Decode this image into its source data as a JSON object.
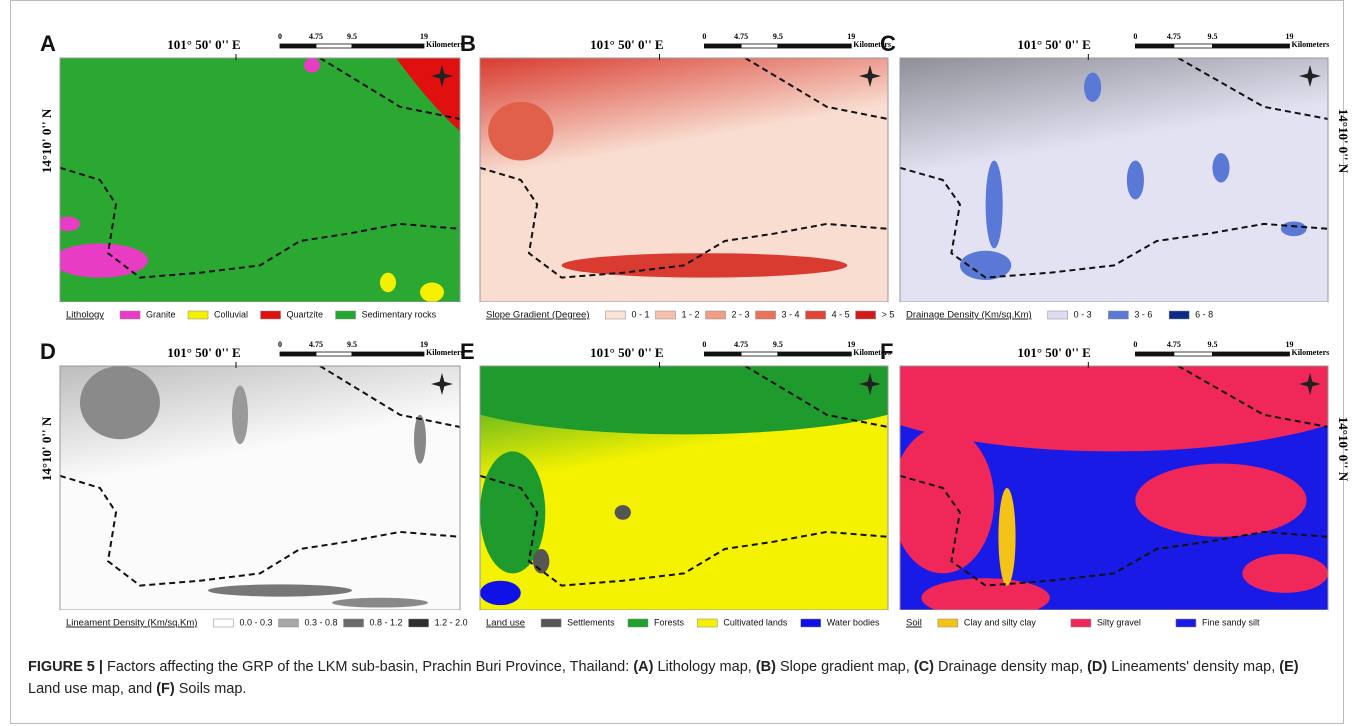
{
  "panels": [
    {
      "label": "A",
      "coordinate_top": "101° 50' 0'' E",
      "coordinate_side": "14°10' 0'' N",
      "side": "left",
      "scale_ticks": [
        0,
        4.75,
        9.5,
        19
      ],
      "scale_unit": "Kilometers",
      "legend_title": "Lithology",
      "legend": [
        {
          "name": "Granite",
          "color": "#e83cc4"
        },
        {
          "name": "Colluvial",
          "color": "#f5f000"
        },
        {
          "name": "Quartzite",
          "color": "#e01010"
        },
        {
          "name": "Sedimentary rocks",
          "color": "#22a832"
        }
      ]
    },
    {
      "label": "B",
      "coordinate_top": "101° 50' 0'' E",
      "scale_ticks": [
        0,
        4.75,
        9.5,
        19
      ],
      "scale_unit": "Kilometers",
      "legend_title": "Slope Gradient (Degree)",
      "legend": [
        {
          "name": "0 - 1",
          "color": "#fbe3d6"
        },
        {
          "name": "1 - 2",
          "color": "#f7c2ad"
        },
        {
          "name": "2 - 3",
          "color": "#f19c84"
        },
        {
          "name": "3 - 4",
          "color": "#ea735a"
        },
        {
          "name": "4 - 5",
          "color": "#e04535"
        },
        {
          "name": "> 5",
          "color": "#d21a1a"
        }
      ]
    },
    {
      "label": "C",
      "coordinate_top": "101° 50' 0'' E",
      "coordinate_side": "14°10' 0'' N",
      "side": "right",
      "scale_ticks": [
        0,
        4.75,
        9.5,
        19
      ],
      "scale_unit": "Kilometers",
      "legend_title": "Drainage Density (Km/sq.Km)",
      "legend": [
        {
          "name": "0 - 3",
          "color": "#dcdcf2"
        },
        {
          "name": "3 - 6",
          "color": "#5a78d6"
        },
        {
          "name": "6 - 8",
          "color": "#0c2a8c"
        }
      ]
    },
    {
      "label": "D",
      "coordinate_top": "101° 50' 0'' E",
      "coordinate_side": "14°10' 0'' N",
      "side": "left",
      "scale_ticks": [
        0,
        4.75,
        9.5,
        19
      ],
      "scale_unit": "Kilometers",
      "legend_title": "Lineament Density (Km/sq.Km)",
      "legend": [
        {
          "name": "0.0 - 0.3",
          "color": "#ffffff"
        },
        {
          "name": "0.3 - 0.8",
          "color": "#a8a8a8"
        },
        {
          "name": "0.8 - 1.2",
          "color": "#6a6a6a"
        },
        {
          "name": "1.2 - 2.0",
          "color": "#2e2e2e"
        }
      ]
    },
    {
      "label": "E",
      "coordinate_top": "101° 50' 0'' E",
      "scale_ticks": [
        0,
        4.75,
        9.5,
        19
      ],
      "scale_unit": "Kilometers",
      "legend_title": "Land use",
      "legend": [
        {
          "name": "Settlements",
          "color": "#555555"
        },
        {
          "name": "Forests",
          "color": "#1fa12c"
        },
        {
          "name": "Cultivated lands",
          "color": "#f5f200"
        },
        {
          "name": "Water bodies",
          "color": "#1010e8"
        }
      ]
    },
    {
      "label": "F",
      "coordinate_top": "101° 50' 0'' E",
      "coordinate_side": "14°10' 0'' N",
      "side": "right",
      "scale_ticks": [
        0,
        4.75,
        9.5,
        19
      ],
      "scale_unit": "Kilometers",
      "legend_title": "Soil",
      "legend": [
        {
          "name": "Clay and silty clay",
          "color": "#f5c218"
        },
        {
          "name": "Silty gravel",
          "color": "#f0285a"
        },
        {
          "name": "Fine sandy silt",
          "color": "#1a1ae6"
        }
      ]
    }
  ],
  "caption": {
    "figure": "FIGURE 5 |",
    "parts": [
      {
        "text": "Factors affecting the GRP of the LKM sub-basin, Prachin Buri Province, Thailand: ",
        "bold": false
      },
      {
        "text": "(A)",
        "bold": true
      },
      {
        "text": " Lithology map, ",
        "bold": false
      },
      {
        "text": "(B)",
        "bold": true
      },
      {
        "text": " Slope gradient map, ",
        "bold": false
      },
      {
        "text": "(C)",
        "bold": true
      },
      {
        "text": " Drainage density map, ",
        "bold": false
      },
      {
        "text": "(D)",
        "bold": true
      },
      {
        "text": " Lineaments' density map, ",
        "bold": false
      },
      {
        "text": "(E)",
        "bold": true
      },
      {
        "text": " Land use map, and ",
        "bold": false
      },
      {
        "text": "(F)",
        "bold": true
      },
      {
        "text": " Soils map.",
        "bold": false
      }
    ]
  }
}
